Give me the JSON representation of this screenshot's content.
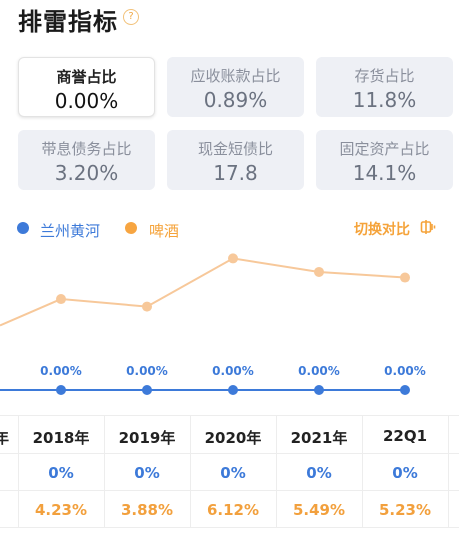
{
  "title": "排雷指标",
  "help_glyph": "?",
  "cards": [
    {
      "label": "商誉占比",
      "value": "0.00%"
    },
    {
      "label": "应收账款占比",
      "value": "0.89%"
    },
    {
      "label": "存货占比",
      "value": "11.8%"
    },
    {
      "label": "带息债务占比",
      "value": "3.20%"
    },
    {
      "label": "现金短债比",
      "value": "17.8"
    },
    {
      "label": "固定资产占比",
      "value": "14.1%"
    }
  ],
  "legend": [
    {
      "name": "兰州黄河",
      "color": "#3d7ad9"
    },
    {
      "name": "啤酒",
      "color": "#f7a541"
    }
  ],
  "switch_label": "切换对比",
  "table": {
    "edge_fragment": "年",
    "years": [
      "2018年",
      "2019年",
      "2020年",
      "2021年",
      "22Q1"
    ],
    "company_values": [
      "0%",
      "0%",
      "0%",
      "0%",
      "0%"
    ],
    "industry_values": [
      "4.23%",
      "3.88%",
      "6.12%",
      "5.49%",
      "5.23%"
    ]
  },
  "chart_data": {
    "type": "line",
    "categories": [
      "2018年",
      "2019年",
      "2020年",
      "2021年",
      "22Q1"
    ],
    "series": [
      {
        "name": "兰州黄河",
        "values": [
          0,
          0,
          0,
          0,
          0
        ],
        "labels": [
          "0.00%",
          "0.00%",
          "0.00%",
          "0.00%",
          "0.00%"
        ],
        "color": "#3d7ad9"
      },
      {
        "name": "啤酒",
        "values": [
          4.23,
          3.88,
          6.12,
          5.49,
          5.23
        ],
        "color": "#f7c89a"
      }
    ]
  }
}
